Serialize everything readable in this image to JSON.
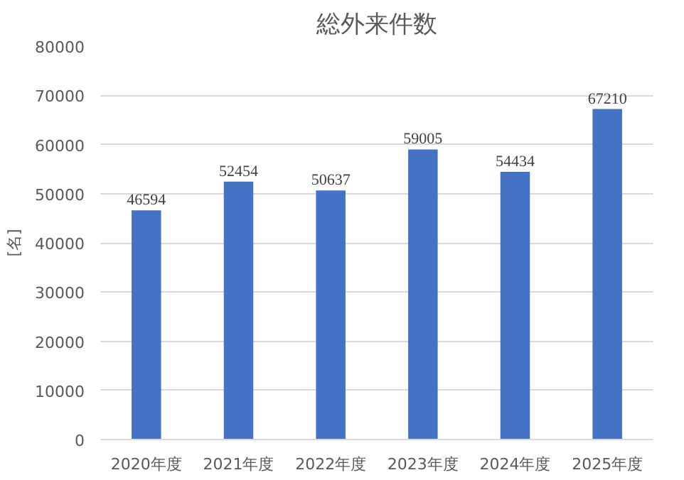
{
  "chart_data": {
    "type": "bar",
    "title": "総外来件数",
    "ylabel": "[名]",
    "categories": [
      "2020年度",
      "2021年度",
      "2022年度",
      "2023年度",
      "2024年度",
      "2025年度"
    ],
    "values": [
      46594,
      52454,
      50637,
      59005,
      54434,
      67210
    ],
    "color": "#4472c4",
    "ylim": [
      0,
      80000
    ],
    "yticks": [
      0,
      10000,
      20000,
      30000,
      40000,
      50000,
      60000,
      70000,
      80000
    ],
    "grid": "y",
    "data_labels": true
  }
}
